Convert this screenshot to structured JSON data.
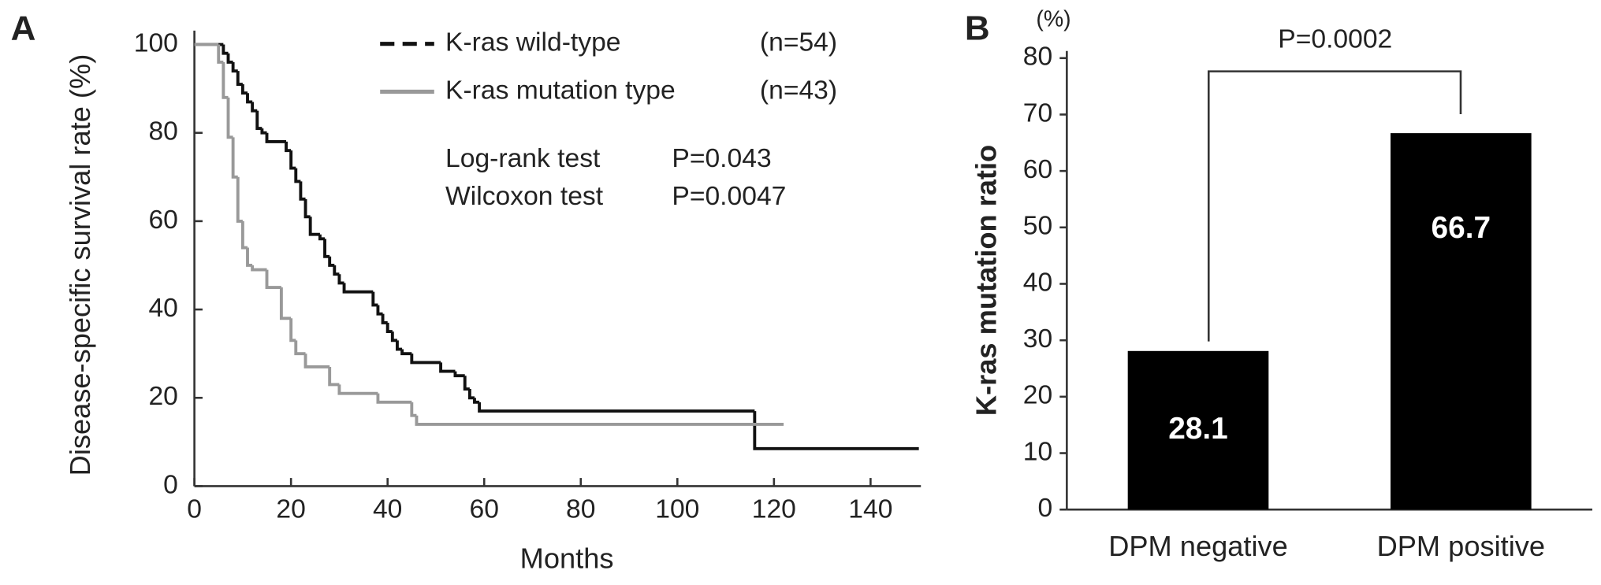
{
  "chart_data": [
    {
      "type": "step",
      "panel": "A",
      "xlabel": "Months",
      "ylabel": "Disease-specific survival rate (%)",
      "xlim": [
        0,
        150
      ],
      "ylim": [
        0,
        105
      ],
      "xticks": [
        0,
        20,
        40,
        60,
        80,
        100,
        120,
        140
      ],
      "yticks": [
        0,
        20,
        40,
        60,
        80,
        100
      ],
      "series": [
        {
          "name": "K-ras wild-type",
          "n_label": "(n=54)",
          "color": "#111111",
          "x": [
            0,
            6,
            7,
            8,
            9,
            10,
            11,
            12,
            13,
            14,
            15,
            19,
            20,
            21,
            22,
            23,
            24,
            26,
            27,
            28,
            29,
            30,
            31,
            37,
            38,
            39,
            40,
            41,
            42,
            43,
            45,
            51,
            54,
            56,
            57,
            58,
            59,
            116,
            150
          ],
          "values": [
            100,
            98,
            96,
            94,
            91,
            89,
            87,
            85,
            81,
            80,
            78,
            76,
            72,
            69,
            65,
            61,
            57,
            56,
            52,
            50,
            48,
            46,
            44,
            41,
            39,
            37,
            35,
            33,
            31,
            30,
            28,
            26,
            25,
            22,
            20,
            19,
            17,
            8.5,
            8.5
          ]
        },
        {
          "name": "K-ras mutation type",
          "n_label": "(n=43)",
          "color": "#999999",
          "x": [
            0,
            5,
            6,
            7,
            8,
            9,
            10,
            11,
            12,
            15,
            18,
            20,
            21,
            23,
            28,
            30,
            38,
            45,
            46,
            122
          ],
          "values": [
            100,
            96,
            88,
            79,
            70,
            60,
            54,
            50,
            49,
            45,
            38,
            33,
            30,
            27,
            23,
            21,
            19,
            16,
            14,
            14
          ]
        }
      ],
      "annotations": [
        [
          "Log-rank test",
          "P=0.043"
        ],
        [
          "Wilcoxon test",
          "P=0.0047"
        ]
      ]
    },
    {
      "type": "bar",
      "panel": "B",
      "ylabel": "K-ras mutation ratio",
      "unit": "(%)",
      "annotation": "P=0.0002",
      "categories": [
        "DPM negative",
        "DPM positive"
      ],
      "values": [
        28.1,
        66.7
      ],
      "color": "#000000",
      "ylim": [
        0,
        80
      ],
      "yticks": [
        0,
        10,
        20,
        30,
        40,
        50,
        60,
        70,
        80
      ]
    }
  ]
}
